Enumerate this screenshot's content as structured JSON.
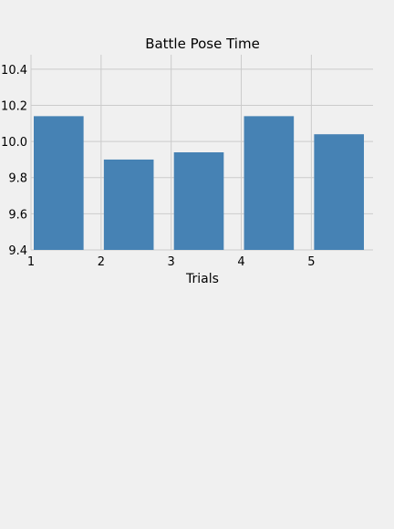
{
  "chart_data": {
    "type": "bar",
    "title": "Battle Pose Time",
    "xlabel": "Trials",
    "ylabel": "",
    "x": [
      1,
      2,
      3,
      4,
      5
    ],
    "values": [
      10.14,
      9.9,
      9.94,
      10.14,
      10.04
    ],
    "xlim": [
      1,
      5.88
    ],
    "ylim": [
      9.4,
      10.48
    ],
    "xticks": [
      "1",
      "2",
      "3",
      "4",
      "5"
    ],
    "yticks": [
      "9.4",
      "9.6",
      "9.8",
      "10.0",
      "10.2",
      "10.4"
    ],
    "bar_color": "#4682b4",
    "grid": true
  },
  "colors": {
    "background": "#f0f0f0",
    "grid": "#cbcbcb"
  }
}
